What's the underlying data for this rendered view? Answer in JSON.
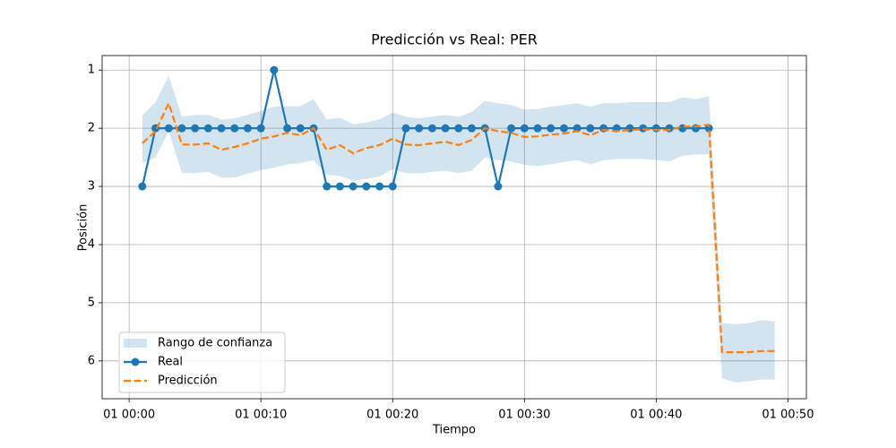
{
  "chart_data": {
    "type": "line",
    "title": "Predicción vs Real: PER",
    "xlabel": "Tiempo",
    "ylabel": "Posición",
    "x": [
      1,
      2,
      3,
      4,
      5,
      6,
      7,
      8,
      9,
      10,
      11,
      12,
      13,
      14,
      15,
      16,
      17,
      18,
      19,
      20,
      21,
      22,
      23,
      24,
      25,
      26,
      27,
      28,
      29,
      30,
      31,
      32,
      33,
      34,
      35,
      36,
      37,
      38,
      39,
      40,
      41,
      42,
      43,
      44,
      45,
      46,
      47,
      48,
      49
    ],
    "xlim": [
      -2.05,
      51.4
    ],
    "xticks": [
      {
        "value": 0,
        "label": "01 00:00"
      },
      {
        "value": 10,
        "label": "01 00:10"
      },
      {
        "value": 20,
        "label": "01 00:20"
      },
      {
        "value": 30,
        "label": "01 00:30"
      },
      {
        "value": 40,
        "label": "01 00:40"
      },
      {
        "value": 50,
        "label": "01 00:50"
      }
    ],
    "ylim": [
      6.65,
      0.75
    ],
    "yticks": [
      1,
      2,
      3,
      4,
      5,
      6
    ],
    "grid": true,
    "legend": "lower left",
    "bands": [
      {
        "name": "Rango de confianza",
        "color": "#1f77b4",
        "lower": [
          1.78,
          1.55,
          1.1,
          1.8,
          1.77,
          1.77,
          1.85,
          1.83,
          1.77,
          1.7,
          1.63,
          1.62,
          1.62,
          1.5,
          1.85,
          1.82,
          1.93,
          1.9,
          1.85,
          1.73,
          1.8,
          1.83,
          1.8,
          1.77,
          1.8,
          1.72,
          1.53,
          1.57,
          1.6,
          1.68,
          1.67,
          1.63,
          1.6,
          1.57,
          1.63,
          1.57,
          1.57,
          1.55,
          1.55,
          1.55,
          1.55,
          1.47,
          1.5,
          1.45,
          5.35,
          5.37,
          5.35,
          5.3,
          5.32
        ],
        "upper": [
          2.6,
          2.5,
          2.05,
          2.77,
          2.77,
          2.75,
          2.85,
          2.85,
          2.78,
          2.72,
          2.68,
          2.62,
          2.6,
          2.55,
          2.8,
          2.82,
          2.9,
          2.87,
          2.83,
          2.7,
          2.77,
          2.78,
          2.75,
          2.73,
          2.77,
          2.73,
          2.5,
          2.55,
          2.57,
          2.63,
          2.65,
          2.62,
          2.58,
          2.55,
          2.62,
          2.55,
          2.53,
          2.53,
          2.53,
          2.55,
          2.57,
          2.47,
          2.45,
          2.45,
          6.3,
          6.37,
          6.35,
          6.32,
          6.32
        ]
      }
    ],
    "series": [
      {
        "name": "Real",
        "color": "#1f77b4",
        "linestyle": "solid",
        "marker": "circle",
        "values": [
          3,
          2,
          2,
          2,
          2,
          2,
          2,
          2,
          2,
          2,
          1,
          2,
          2,
          2,
          3,
          3,
          3,
          3,
          3,
          3,
          2,
          2,
          2,
          2,
          2,
          2,
          2,
          3,
          2,
          2,
          2,
          2,
          2,
          2,
          2,
          2,
          2,
          2,
          2,
          2,
          2,
          2,
          2,
          2,
          null,
          null,
          null,
          null,
          null
        ]
      },
      {
        "name": "Predicción",
        "color": "#ff7f0e",
        "linestyle": "dashed",
        "marker": "none",
        "values": [
          2.26,
          2.05,
          1.57,
          2.28,
          2.28,
          2.26,
          2.37,
          2.32,
          2.26,
          2.18,
          2.14,
          2.08,
          2.12,
          2.0,
          2.37,
          2.29,
          2.43,
          2.34,
          2.29,
          2.18,
          2.28,
          2.29,
          2.26,
          2.23,
          2.29,
          2.2,
          2.0,
          2.05,
          2.08,
          2.15,
          2.14,
          2.11,
          2.09,
          2.05,
          2.12,
          2.03,
          2.05,
          2.03,
          2.02,
          2.03,
          2.03,
          1.97,
          1.97,
          1.94,
          5.85,
          5.85,
          5.85,
          5.83,
          5.83
        ]
      }
    ]
  }
}
